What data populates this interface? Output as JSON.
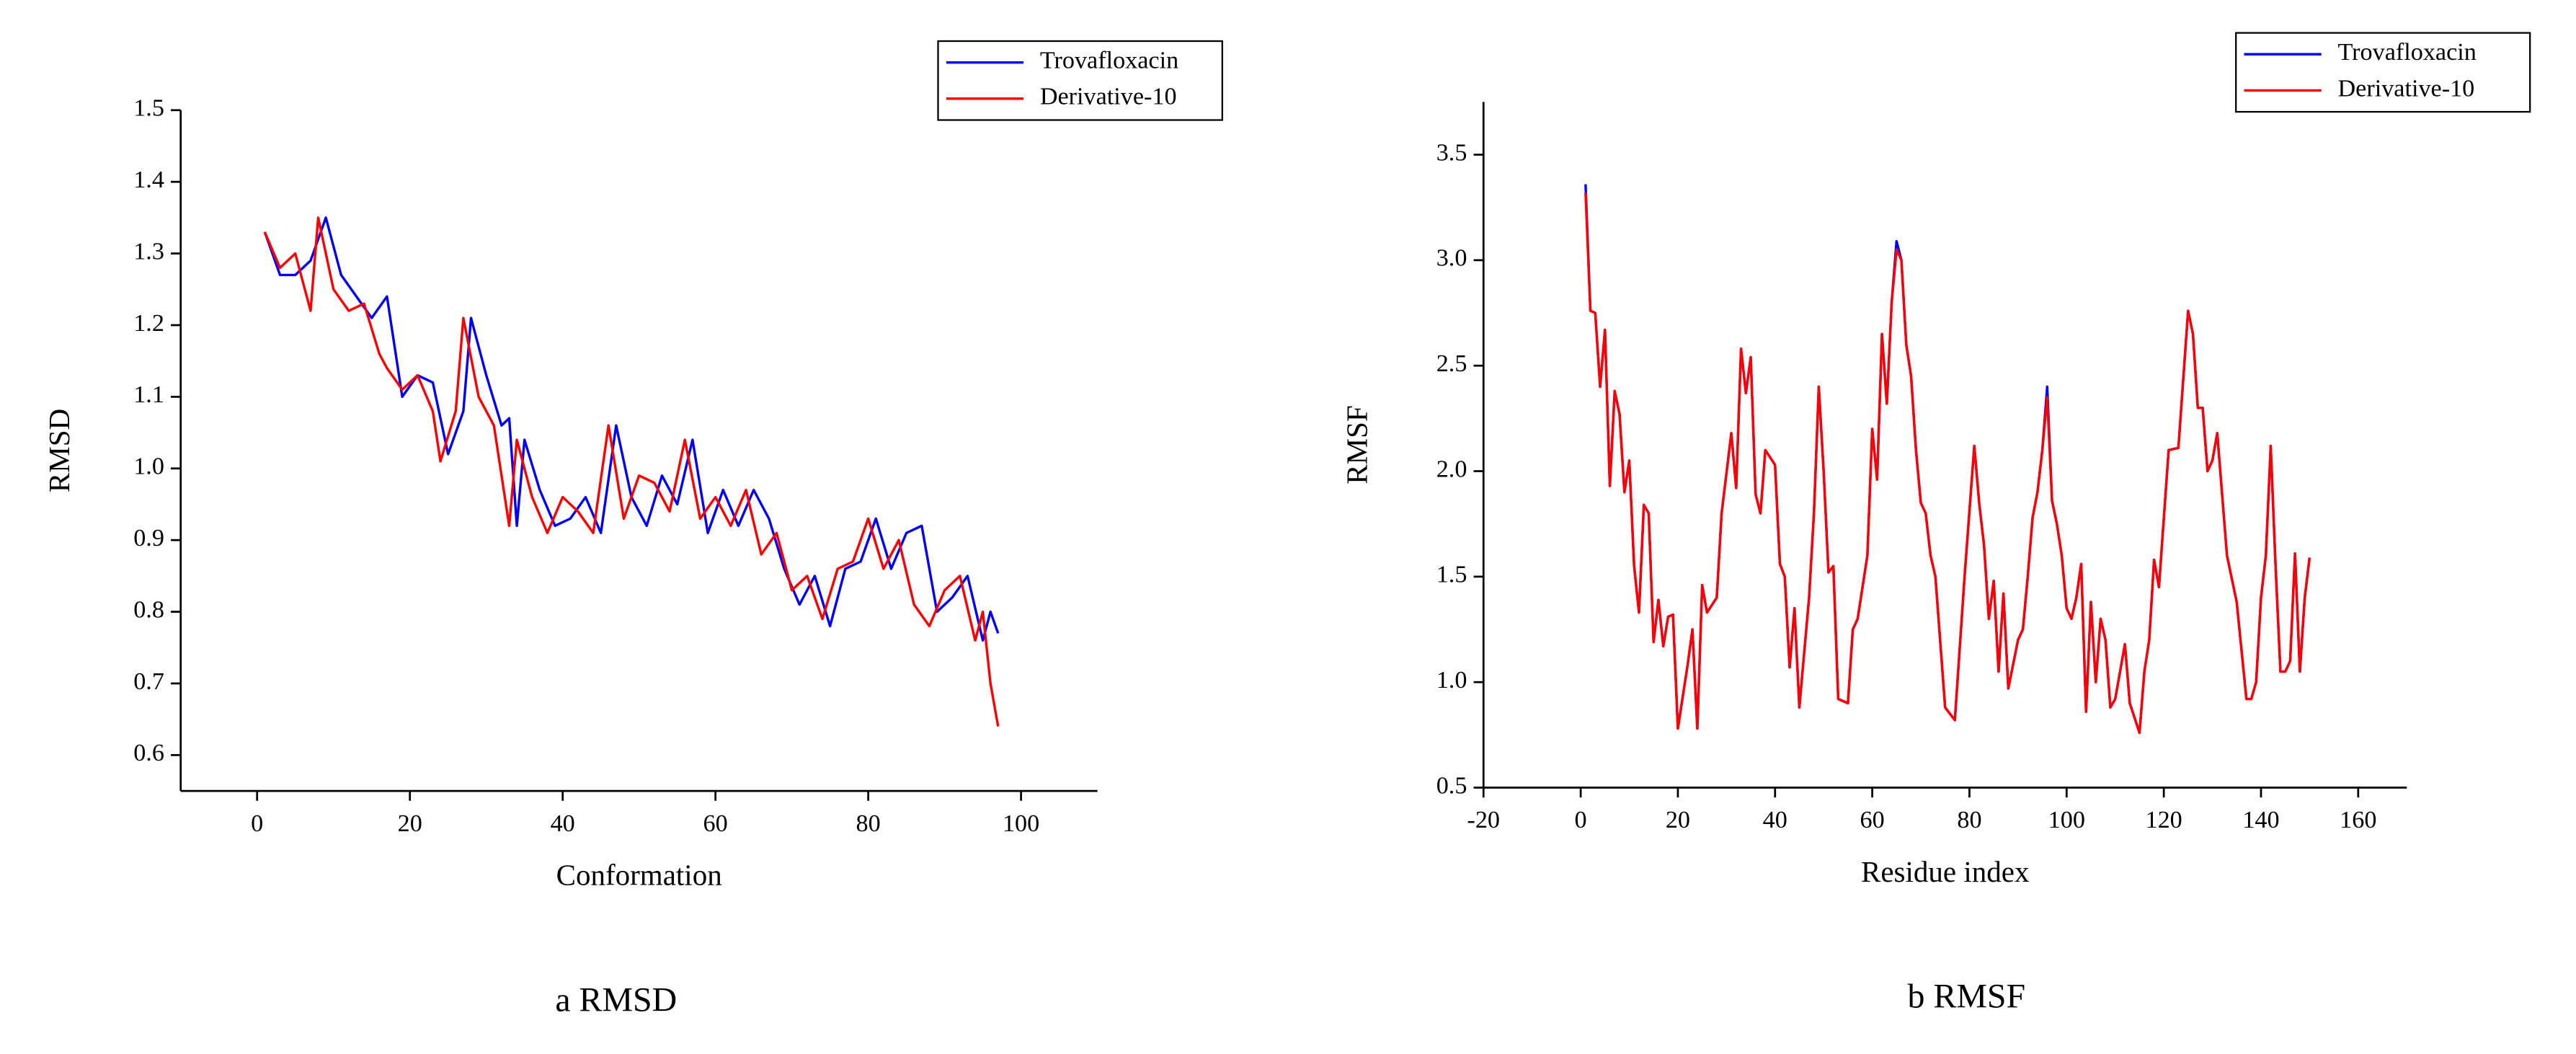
{
  "chart_data": [
    {
      "type": "line",
      "caption": "a RMSD",
      "x_label": "Conformation",
      "y_label": "RMSD",
      "xlim": [
        -10,
        110
      ],
      "xticks": [
        0,
        20,
        40,
        60,
        80,
        100
      ],
      "ylim": [
        0.55,
        1.5
      ],
      "yticks": [
        0.6,
        0.7,
        0.8,
        0.9,
        {
          "value": 1.0,
          "label": "1.0"
        },
        1.1,
        1.2,
        1.3,
        1.4,
        1.5
      ],
      "legend": "upper right",
      "series": [
        {
          "name": "Trovafloxacin",
          "color": "#0000ff",
          "x": [
            1,
            3,
            5,
            7,
            9,
            11,
            13,
            15,
            17,
            19,
            21,
            23,
            25,
            27,
            28,
            30,
            32,
            33,
            34,
            35,
            37,
            39,
            41,
            43,
            45,
            47,
            49,
            51,
            53,
            55,
            57,
            59,
            61,
            63,
            65,
            67,
            69,
            71,
            73,
            75,
            77,
            79,
            81,
            83,
            85,
            87,
            89,
            91,
            93,
            95,
            96,
            97
          ],
          "values": [
            1.33,
            1.27,
            1.27,
            1.29,
            1.35,
            1.27,
            1.24,
            1.21,
            1.24,
            1.1,
            1.13,
            1.12,
            1.02,
            1.08,
            1.21,
            1.13,
            1.06,
            1.07,
            0.92,
            1.04,
            0.97,
            0.92,
            0.93,
            0.96,
            0.91,
            1.06,
            0.96,
            0.92,
            0.99,
            0.95,
            1.04,
            0.91,
            0.97,
            0.92,
            0.97,
            0.93,
            0.86,
            0.81,
            0.85,
            0.78,
            0.86,
            0.87,
            0.93,
            0.86,
            0.91,
            0.92,
            0.8,
            0.82,
            0.85,
            0.76,
            0.8,
            0.77
          ]
        },
        {
          "name": "Derivative-10",
          "color": "#ff0000",
          "x": [
            1,
            3,
            5,
            7,
            8,
            10,
            12,
            14,
            16,
            17,
            19,
            21,
            23,
            24,
            26,
            27,
            29,
            31,
            33,
            34,
            36,
            38,
            40,
            42,
            44,
            46,
            48,
            50,
            52,
            54,
            56,
            58,
            60,
            62,
            64,
            66,
            68,
            70,
            72,
            74,
            76,
            78,
            80,
            82,
            84,
            86,
            88,
            90,
            92,
            94,
            95,
            96,
            97
          ],
          "values": [
            1.33,
            1.28,
            1.3,
            1.22,
            1.35,
            1.25,
            1.22,
            1.23,
            1.16,
            1.14,
            1.11,
            1.13,
            1.08,
            1.01,
            1.08,
            1.21,
            1.1,
            1.06,
            0.92,
            1.04,
            0.96,
            0.91,
            0.96,
            0.94,
            0.91,
            1.06,
            0.93,
            0.99,
            0.98,
            0.94,
            1.04,
            0.93,
            0.96,
            0.92,
            0.97,
            0.88,
            0.91,
            0.83,
            0.85,
            0.79,
            0.86,
            0.87,
            0.93,
            0.86,
            0.9,
            0.81,
            0.78,
            0.83,
            0.85,
            0.76,
            0.8,
            0.7,
            0.64
          ]
        }
      ]
    },
    {
      "type": "line",
      "caption": "b RMSF",
      "x_label": "Residue index",
      "y_label": "RMSF",
      "xlim": [
        -20,
        170
      ],
      "xticks": [
        -20,
        0,
        20,
        40,
        60,
        80,
        100,
        120,
        140,
        160
      ],
      "ylim": [
        0.5,
        3.75
      ],
      "yticks": [
        0.5,
        {
          "value": 1.0,
          "label": "1.0"
        },
        1.5,
        {
          "value": 2.0,
          "label": "2.0"
        },
        2.5,
        {
          "value": 3.0,
          "label": "3.0"
        },
        3.5
      ],
      "legend": "upper right",
      "series": [
        {
          "name": "Trovafloxacin",
          "color": "#0000ff",
          "x": [
            1,
            2,
            3,
            4,
            5,
            6,
            7,
            8,
            9,
            10,
            11,
            12,
            13,
            14,
            15,
            16,
            17,
            18,
            19,
            20,
            22,
            23,
            24,
            25,
            26,
            28,
            29,
            31,
            32,
            33,
            34,
            35,
            36,
            37,
            38,
            40,
            41,
            42,
            43,
            44,
            45,
            47,
            48,
            49,
            50,
            51,
            52,
            53,
            55,
            56,
            57,
            59,
            60,
            61,
            62,
            63,
            64,
            65,
            66,
            67,
            68,
            69,
            70,
            71,
            72,
            73,
            75,
            76,
            77,
            79,
            81,
            82,
            83,
            84,
            85,
            86,
            87,
            88,
            90,
            91,
            92,
            93,
            94,
            95,
            96,
            97,
            98,
            99,
            100,
            101,
            102,
            103,
            104,
            105,
            106,
            107,
            108,
            109,
            110,
            112,
            113,
            115,
            116,
            117,
            118,
            119,
            121,
            123,
            125,
            126,
            127,
            128,
            129,
            130,
            131,
            133,
            135,
            137,
            138,
            139,
            140,
            141,
            142,
            143,
            144,
            145,
            146,
            147,
            148,
            149,
            150
          ],
          "values": [
            3.36,
            2.76,
            2.75,
            2.4,
            2.67,
            1.93,
            2.38,
            2.27,
            1.9,
            2.05,
            1.55,
            1.33,
            1.84,
            1.8,
            1.19,
            1.39,
            1.17,
            1.31,
            1.32,
            0.78,
            1.08,
            1.25,
            0.78,
            1.46,
            1.33,
            1.4,
            1.8,
            2.18,
            1.92,
            2.58,
            2.37,
            2.54,
            1.89,
            1.8,
            2.1,
            2.03,
            1.56,
            1.5,
            1.07,
            1.35,
            0.88,
            1.4,
            1.8,
            2.4,
            2.0,
            1.52,
            1.55,
            0.92,
            0.9,
            1.25,
            1.3,
            1.6,
            2.2,
            1.96,
            2.65,
            2.32,
            2.8,
            3.09,
            3.0,
            2.6,
            2.45,
            2.1,
            1.85,
            1.8,
            1.6,
            1.5,
            0.88,
            0.85,
            0.82,
            1.5,
            2.12,
            1.85,
            1.65,
            1.3,
            1.48,
            1.05,
            1.42,
            0.97,
            1.2,
            1.25,
            1.5,
            1.78,
            1.9,
            2.1,
            2.4,
            1.86,
            1.75,
            1.6,
            1.35,
            1.3,
            1.4,
            1.56,
            0.86,
            1.38,
            1.0,
            1.3,
            1.2,
            0.88,
            0.92,
            1.18,
            0.9,
            0.76,
            1.05,
            1.2,
            1.58,
            1.45,
            2.1,
            2.11,
            2.76,
            2.65,
            2.3,
            2.3,
            2.0,
            2.05,
            2.18,
            1.6,
            1.38,
            0.92,
            0.92,
            1.0,
            1.4,
            1.6,
            2.12,
            1.55,
            1.05,
            1.05,
            1.1,
            1.61,
            1.05,
            1.4,
            1.59
          ]
        },
        {
          "name": "Derivative-10",
          "color": "#ff0000",
          "x": [
            1,
            2,
            3,
            4,
            5,
            6,
            7,
            8,
            9,
            10,
            11,
            12,
            13,
            14,
            15,
            16,
            17,
            18,
            19,
            20,
            22,
            23,
            24,
            25,
            26,
            28,
            29,
            31,
            32,
            33,
            34,
            35,
            36,
            37,
            38,
            40,
            41,
            42,
            43,
            44,
            45,
            47,
            48,
            49,
            50,
            51,
            52,
            53,
            55,
            56,
            57,
            59,
            60,
            61,
            62,
            63,
            64,
            65,
            66,
            67,
            68,
            69,
            70,
            71,
            72,
            73,
            75,
            76,
            77,
            79,
            81,
            82,
            83,
            84,
            85,
            86,
            87,
            88,
            90,
            91,
            92,
            93,
            94,
            95,
            96,
            97,
            98,
            99,
            100,
            101,
            102,
            103,
            104,
            105,
            106,
            107,
            108,
            109,
            110,
            112,
            113,
            115,
            116,
            117,
            118,
            119,
            121,
            123,
            125,
            126,
            127,
            128,
            129,
            130,
            131,
            133,
            135,
            137,
            138,
            139,
            140,
            141,
            142,
            143,
            144,
            145,
            146,
            147,
            148,
            149,
            150
          ],
          "values": [
            3.32,
            2.76,
            2.75,
            2.4,
            2.67,
            1.93,
            2.38,
            2.27,
            1.9,
            2.05,
            1.55,
            1.33,
            1.84,
            1.8,
            1.19,
            1.39,
            1.17,
            1.31,
            1.32,
            0.78,
            1.08,
            1.25,
            0.78,
            1.46,
            1.33,
            1.4,
            1.8,
            2.18,
            1.92,
            2.58,
            2.37,
            2.54,
            1.89,
            1.8,
            2.1,
            2.03,
            1.56,
            1.5,
            1.07,
            1.35,
            0.88,
            1.4,
            1.8,
            2.4,
            2.0,
            1.52,
            1.55,
            0.92,
            0.9,
            1.25,
            1.3,
            1.6,
            2.2,
            1.96,
            2.65,
            2.32,
            2.8,
            3.05,
            3.0,
            2.6,
            2.45,
            2.1,
            1.85,
            1.8,
            1.6,
            1.5,
            0.88,
            0.85,
            0.82,
            1.5,
            2.12,
            1.85,
            1.65,
            1.3,
            1.48,
            1.05,
            1.42,
            0.97,
            1.2,
            1.25,
            1.5,
            1.78,
            1.9,
            2.1,
            2.35,
            1.86,
            1.75,
            1.6,
            1.35,
            1.3,
            1.4,
            1.56,
            0.86,
            1.38,
            1.0,
            1.3,
            1.2,
            0.88,
            0.92,
            1.18,
            0.9,
            0.76,
            1.05,
            1.2,
            1.58,
            1.45,
            2.1,
            2.11,
            2.76,
            2.65,
            2.3,
            2.3,
            2.0,
            2.05,
            2.18,
            1.6,
            1.38,
            0.92,
            0.92,
            1.0,
            1.4,
            1.6,
            2.12,
            1.55,
            1.05,
            1.05,
            1.1,
            1.61,
            1.05,
            1.4,
            1.59
          ]
        }
      ]
    }
  ]
}
